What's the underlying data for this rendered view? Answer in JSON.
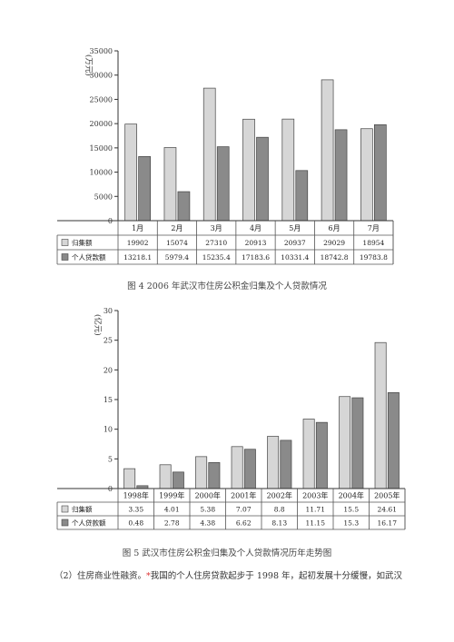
{
  "caption1": "图 4 2006 年武汉市住房公积金归集及个人贷款情况",
  "caption2": "图 5 武汉市住房公积金归集及个人贷款情况历年走势图",
  "paragraph_prefix": "（2）住房商业性融资。",
  "paragraph_mark": "*",
  "paragraph_text": "我国的个人住房贷款起步于 1998 年，起初发展十分缓慢，如武汉",
  "colors": {
    "series1": "#d6d6d6",
    "series2": "#8a8a8a",
    "axis": "#333333"
  },
  "chart_data": [
    {
      "type": "bar",
      "ylabel": "(万元)",
      "ylim": [
        0,
        35000
      ],
      "yticks": [
        0,
        5000,
        10000,
        15000,
        20000,
        25000,
        30000,
        35000
      ],
      "categories": [
        "1月",
        "2月",
        "3月",
        "4月",
        "5月",
        "6月",
        "7月"
      ],
      "series": [
        {
          "name": "归集额",
          "values": [
            19902,
            15074,
            27310,
            20913,
            20937,
            29029,
            18954
          ],
          "labels": [
            "19902",
            "15074",
            "27310",
            "20913",
            "20937",
            "29029",
            "18954"
          ]
        },
        {
          "name": "个人贷款额",
          "values": [
            13218.1,
            5979.4,
            15235.4,
            17183.6,
            10331.4,
            18742.8,
            19783.8
          ],
          "labels": [
            "13218.1",
            "5979.4",
            "15235.4",
            "17183.6",
            "10331.4",
            "18742.8",
            "19783.8"
          ]
        }
      ],
      "legend": "data-table"
    },
    {
      "type": "bar",
      "ylabel": "(亿元)",
      "ylim": [
        0,
        30
      ],
      "yticks": [
        0,
        5,
        10,
        15,
        20,
        25,
        30
      ],
      "categories": [
        "1998年",
        "1999年",
        "2000年",
        "2001年",
        "2002年",
        "2003年",
        "2004年",
        "2005年"
      ],
      "series": [
        {
          "name": "归集额",
          "values": [
            3.35,
            4.01,
            5.38,
            7.07,
            8.8,
            11.71,
            15.5,
            24.61
          ],
          "labels": [
            "3.35",
            "4.01",
            "5.38",
            "7.07",
            "8.8",
            "11.71",
            "15.5",
            "24.61"
          ]
        },
        {
          "name": "个人贷款额",
          "values": [
            0.48,
            2.78,
            4.38,
            6.62,
            8.13,
            11.15,
            15.3,
            16.17
          ],
          "labels": [
            "0.48",
            "2.78",
            "4.38",
            "6.62",
            "8.13",
            "11.15",
            "15.3",
            "16.17"
          ]
        }
      ],
      "legend": "data-table"
    }
  ]
}
